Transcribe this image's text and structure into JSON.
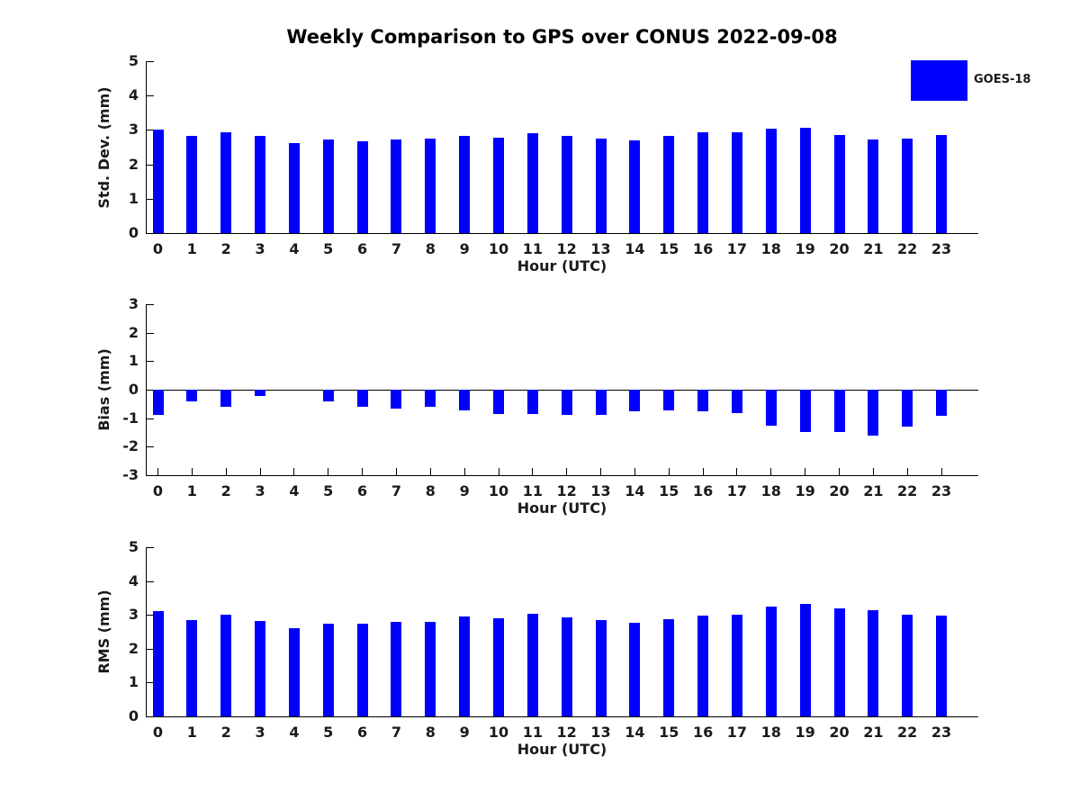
{
  "title": "Weekly Comparison to GPS over CONUS 2022-09-08",
  "legend": {
    "label": "GOES-18",
    "color": "#0000FF",
    "position": "top-right"
  },
  "chart_data": [
    {
      "type": "bar",
      "series_name": "GOES-18",
      "bar_color": "#0000FF",
      "ylabel": "Std. Dev. (mm)",
      "xlabel": "Hour (UTC)",
      "categories": [
        "0",
        "1",
        "2",
        "3",
        "4",
        "5",
        "6",
        "7",
        "8",
        "9",
        "10",
        "11",
        "12",
        "13",
        "14",
        "15",
        "16",
        "17",
        "18",
        "19",
        "20",
        "21",
        "22",
        "23"
      ],
      "values": [
        3.02,
        2.84,
        2.94,
        2.84,
        2.62,
        2.72,
        2.67,
        2.72,
        2.74,
        2.84,
        2.78,
        2.9,
        2.82,
        2.76,
        2.69,
        2.82,
        2.92,
        2.92,
        3.03,
        3.05,
        2.86,
        2.72,
        2.75,
        2.86
      ],
      "ylim": [
        0,
        5
      ],
      "yticks": [
        0,
        1,
        2,
        3,
        4,
        5
      ],
      "grid": false
    },
    {
      "type": "bar",
      "series_name": "GOES-18",
      "bar_color": "#0000FF",
      "ylabel": "Bias (mm)",
      "xlabel": "Hour (UTC)",
      "categories": [
        "0",
        "1",
        "2",
        "3",
        "4",
        "5",
        "6",
        "7",
        "8",
        "9",
        "10",
        "11",
        "12",
        "13",
        "14",
        "15",
        "16",
        "17",
        "18",
        "19",
        "20",
        "21",
        "22",
        "23"
      ],
      "values": [
        -0.87,
        -0.42,
        -0.6,
        -0.22,
        0.0,
        -0.42,
        -0.6,
        -0.66,
        -0.6,
        -0.74,
        -0.86,
        -0.86,
        -0.87,
        -0.87,
        -0.77,
        -0.74,
        -0.77,
        -0.82,
        -1.27,
        -1.48,
        -1.48,
        -1.6,
        -1.29,
        -0.9
      ],
      "ylim": [
        -3,
        3
      ],
      "yticks": [
        -3,
        -2,
        -1,
        0,
        1,
        2,
        3
      ],
      "zero_line": true,
      "grid": false
    },
    {
      "type": "bar",
      "series_name": "GOES-18",
      "bar_color": "#0000FF",
      "ylabel": "RMS (mm)",
      "xlabel": "Hour (UTC)",
      "categories": [
        "0",
        "1",
        "2",
        "3",
        "4",
        "5",
        "6",
        "7",
        "8",
        "9",
        "10",
        "11",
        "12",
        "13",
        "14",
        "15",
        "16",
        "17",
        "18",
        "19",
        "20",
        "21",
        "22",
        "23"
      ],
      "values": [
        3.12,
        2.84,
        3.0,
        2.83,
        2.6,
        2.74,
        2.74,
        2.8,
        2.79,
        2.94,
        2.89,
        3.02,
        2.92,
        2.85,
        2.76,
        2.88,
        2.97,
        3.01,
        3.24,
        3.33,
        3.19,
        3.13,
        3.0,
        2.97
      ],
      "ylim": [
        0,
        5
      ],
      "yticks": [
        0,
        1,
        2,
        3,
        4,
        5
      ],
      "grid": false
    }
  ]
}
